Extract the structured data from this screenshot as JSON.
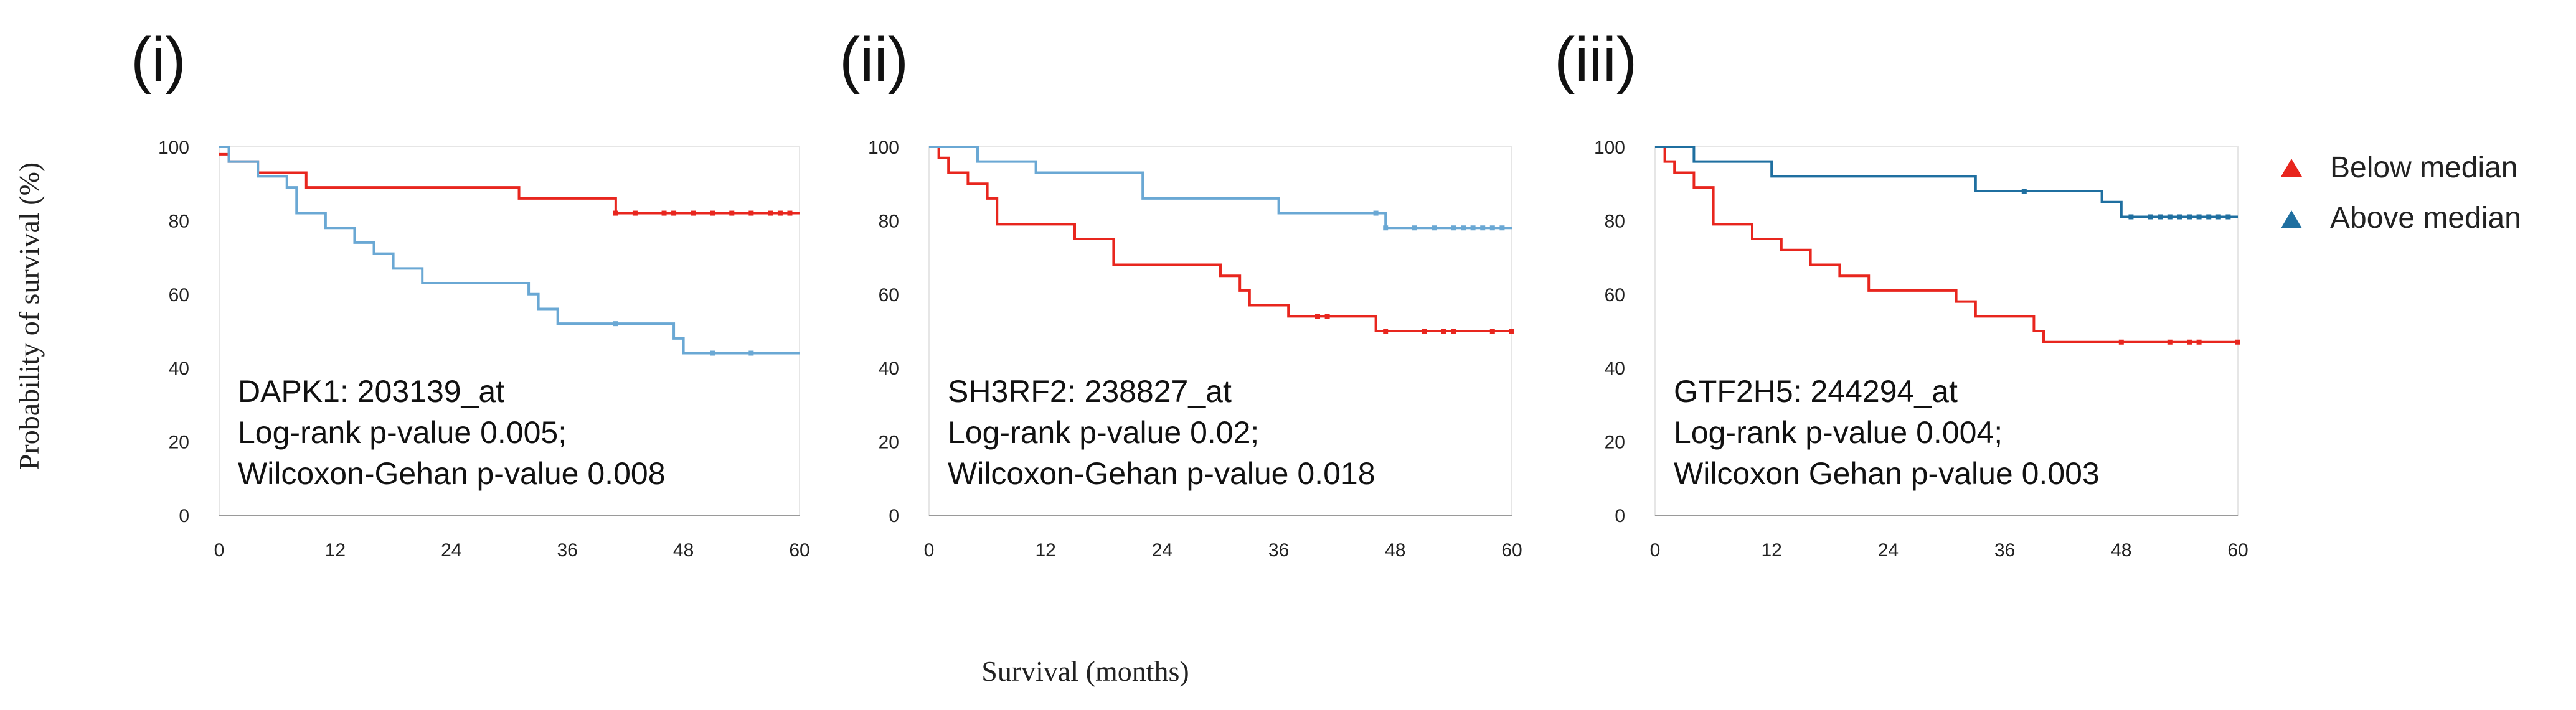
{
  "xlabel": "Survival (months)",
  "ylabel": "Probability of survival (%)",
  "legend": {
    "position": "right",
    "items": [
      {
        "label": "Below median",
        "color": "#e8261e"
      },
      {
        "label": "Above median",
        "color": "#1f6fa0"
      }
    ]
  },
  "chart_data": [
    {
      "type": "line",
      "panel_label": "(i)",
      "annotation": [
        "DAPK1: 203139_at",
        "Log-rank p-value 0.005;",
        "Wilcoxon-Gehan p-value 0.008"
      ],
      "xlim": [
        0,
        60
      ],
      "ylim": [
        0,
        100
      ],
      "x_ticks": [
        0,
        12,
        24,
        36,
        48,
        60
      ],
      "y_ticks": [
        0,
        20,
        40,
        60,
        80,
        100
      ],
      "series": [
        {
          "name": "Below median",
          "color": "#e8261e",
          "x": [
            0,
            1,
            4,
            9,
            19,
            31,
            41,
            60
          ],
          "y": [
            98,
            96,
            93,
            89,
            89,
            86,
            82,
            82
          ],
          "censor_x": [
            41,
            43,
            46,
            47,
            49,
            51,
            53,
            55,
            57,
            58,
            59
          ]
        },
        {
          "name": "Above median",
          "color": "#6aa8d4",
          "x": [
            0,
            1,
            2,
            4,
            7,
            8,
            11,
            14,
            16,
            18,
            21,
            25,
            32,
            33,
            35,
            37,
            47,
            48,
            60
          ],
          "y": [
            100,
            96,
            96,
            92,
            89,
            82,
            78,
            74,
            71,
            67,
            63,
            63,
            60,
            56,
            52,
            52,
            48,
            44,
            44
          ],
          "censor_x": [
            41,
            51,
            55
          ]
        }
      ]
    },
    {
      "type": "line",
      "panel_label": "(ii)",
      "annotation": [
        "SH3RF2: 238827_at",
        "Log-rank p-value 0.02;",
        "Wilcoxon-Gehan p-value 0.018"
      ],
      "xlim": [
        0,
        60
      ],
      "ylim": [
        0,
        100
      ],
      "x_ticks": [
        0,
        12,
        24,
        36,
        48,
        60
      ],
      "y_ticks": [
        0,
        20,
        40,
        60,
        80,
        100
      ],
      "series": [
        {
          "name": "Below median",
          "color": "#e8261e",
          "x": [
            0,
            1,
            2,
            4,
            6,
            7,
            12,
            15,
            19,
            30,
            32,
            33,
            37,
            46,
            60
          ],
          "y": [
            100,
            97,
            93,
            90,
            86,
            79,
            79,
            75,
            68,
            65,
            61,
            57,
            54,
            50,
            50
          ],
          "censor_x": [
            40,
            41,
            47,
            51,
            53,
            54,
            58,
            60
          ]
        },
        {
          "name": "Above median",
          "color": "#6aa8d4",
          "x": [
            0,
            5,
            11,
            22,
            36,
            47,
            60
          ],
          "y": [
            100,
            96,
            93,
            86,
            82,
            78,
            78
          ],
          "censor_x": [
            46,
            47,
            50,
            52,
            54,
            55,
            56,
            57,
            58,
            59
          ]
        }
      ]
    },
    {
      "type": "line",
      "panel_label": "(iii)",
      "annotation": [
        "GTF2H5: 244294_at",
        "Log-rank p-value 0.004;",
        "Wilcoxon Gehan p-value 0.003"
      ],
      "xlim": [
        0,
        60
      ],
      "ylim": [
        0,
        100
      ],
      "x_ticks": [
        0,
        12,
        24,
        36,
        48,
        60
      ],
      "y_ticks": [
        0,
        20,
        40,
        60,
        80,
        100
      ],
      "series": [
        {
          "name": "Below median",
          "color": "#e8261e",
          "x": [
            0,
            1,
            2,
            4,
            6,
            10,
            13,
            16,
            19,
            22,
            31,
            33,
            39,
            40,
            60
          ],
          "y": [
            100,
            96,
            93,
            89,
            79,
            75,
            72,
            68,
            65,
            61,
            58,
            54,
            50,
            47,
            47
          ],
          "censor_x": [
            48,
            53,
            55,
            56,
            60
          ]
        },
        {
          "name": "Above median",
          "color": "#1f6fa0",
          "x": [
            0,
            4,
            12,
            33,
            46,
            47,
            48,
            60
          ],
          "y": [
            100,
            96,
            92,
            88,
            85,
            85,
            81,
            81
          ],
          "censor_x": [
            38,
            49,
            51,
            52,
            53,
            54,
            55,
            56,
            57,
            58,
            59
          ]
        }
      ]
    }
  ]
}
